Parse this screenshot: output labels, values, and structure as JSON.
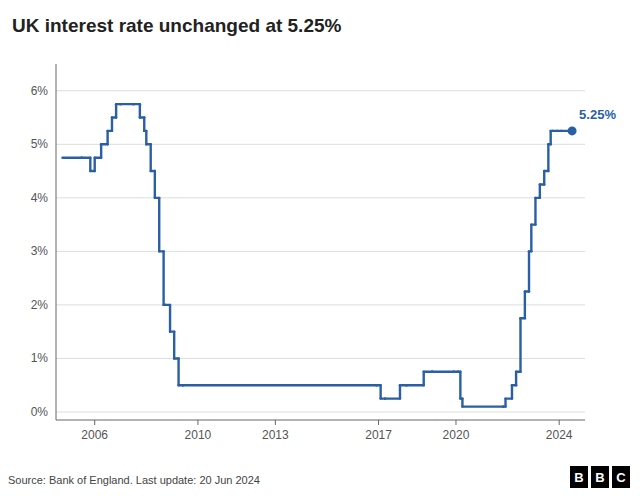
{
  "chart_data": {
    "type": "step",
    "title": "UK interest rate unchanged at 5.25%",
    "annotation": "5.25%",
    "source": "Source: Bank of England. Last update: 20 Jun 2024",
    "logo": "BBC",
    "color": "#2a5fa5",
    "marker": "end-dot",
    "grid": "y",
    "xlim": [
      2004.5,
      2025.0
    ],
    "ylim": [
      -0.15,
      6.5
    ],
    "xticks": [
      2006,
      2010,
      2013,
      2017,
      2020,
      2024
    ],
    "yticks": [
      {
        "value": 0,
        "label": "0%"
      },
      {
        "value": 1,
        "label": "1%"
      },
      {
        "value": 2,
        "label": "2%"
      },
      {
        "value": 3,
        "label": "3%"
      },
      {
        "value": 4,
        "label": "4%"
      },
      {
        "value": 5,
        "label": "5%"
      },
      {
        "value": 6,
        "label": "6%"
      }
    ],
    "x": [
      2004.75,
      2005.5,
      2005.83,
      2006.0,
      2006.25,
      2006.5,
      2006.67,
      2006.83,
      2007.0,
      2007.5,
      2007.75,
      2007.92,
      2008.0,
      2008.17,
      2008.33,
      2008.5,
      2008.67,
      2008.75,
      2008.92,
      2009.08,
      2009.25,
      2009.42,
      2016.92,
      2017.08,
      2017.25,
      2017.83,
      2018.08,
      2018.75,
      2019.08,
      2019.92,
      2020.08,
      2020.17,
      2020.25,
      2021.83,
      2021.92,
      2022.17,
      2022.33,
      2022.5,
      2022.67,
      2022.83,
      2022.92,
      2023.08,
      2023.25,
      2023.42,
      2023.58,
      2023.67,
      2023.75,
      2023.92,
      2024.08,
      2024.5
    ],
    "values": [
      4.75,
      4.75,
      4.5,
      4.75,
      5.0,
      5.25,
      5.5,
      5.75,
      5.75,
      5.75,
      5.5,
      5.25,
      5.0,
      4.5,
      4.0,
      3.0,
      2.0,
      2.0,
      1.5,
      1.0,
      0.5,
      0.5,
      0.5,
      0.25,
      0.25,
      0.5,
      0.5,
      0.75,
      0.75,
      0.75,
      0.75,
      0.25,
      0.1,
      0.1,
      0.25,
      0.5,
      0.75,
      1.75,
      2.25,
      3.0,
      3.5,
      4.0,
      4.25,
      4.5,
      5.0,
      5.25,
      5.25,
      5.25,
      5.25,
      5.25
    ]
  }
}
